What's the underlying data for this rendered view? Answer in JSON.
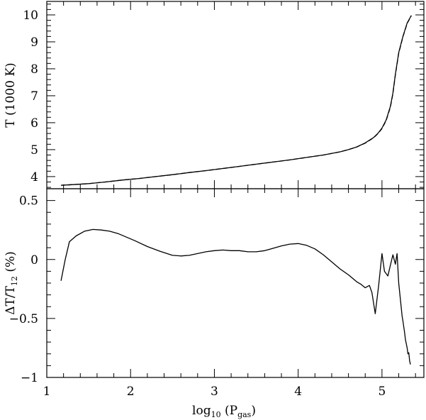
{
  "chart_data": [
    {
      "type": "line",
      "panel": "top",
      "ylabel": "T (1000 K)",
      "xlim": [
        1,
        5.5
      ],
      "ylim": [
        3.55,
        10.5
      ],
      "yticks": [
        "4",
        "5",
        "6",
        "7",
        "8",
        "9",
        "10"
      ],
      "grid": false,
      "series": [
        {
          "style": "solid",
          "x": [
            1.17,
            1.3,
            1.5,
            1.7,
            1.9,
            2.1,
            2.3,
            2.5,
            2.7,
            2.9,
            3.1,
            3.3,
            3.5,
            3.7,
            3.9,
            4.1,
            4.3,
            4.5,
            4.6,
            4.7,
            4.8,
            4.9,
            4.95,
            5.0,
            5.05,
            5.1,
            5.13,
            5.16,
            5.2,
            5.25,
            5.3,
            5.35
          ],
          "y": [
            3.68,
            3.7,
            3.74,
            3.8,
            3.87,
            3.93,
            4.0,
            4.07,
            4.15,
            4.22,
            4.3,
            4.38,
            4.46,
            4.54,
            4.62,
            4.71,
            4.8,
            4.92,
            5.0,
            5.1,
            5.25,
            5.45,
            5.6,
            5.8,
            6.1,
            6.6,
            7.1,
            7.8,
            8.6,
            9.2,
            9.7,
            9.98
          ]
        },
        {
          "style": "dashed",
          "x": [
            1.17,
            1.3,
            1.5,
            1.7,
            1.9,
            2.1,
            2.3,
            2.5,
            2.7,
            2.9,
            3.1,
            3.3,
            3.5,
            3.7,
            3.9,
            4.1,
            4.3,
            4.5,
            4.6,
            4.7,
            4.8,
            4.9,
            4.95,
            5.0,
            5.05,
            5.1,
            5.13,
            5.16,
            5.2,
            5.25,
            5.3,
            5.35
          ],
          "y": [
            3.68,
            3.7,
            3.74,
            3.8,
            3.87,
            3.93,
            4.0,
            4.07,
            4.15,
            4.22,
            4.3,
            4.38,
            4.46,
            4.54,
            4.62,
            4.71,
            4.8,
            4.92,
            5.0,
            5.1,
            5.24,
            5.44,
            5.59,
            5.78,
            6.08,
            6.57,
            7.07,
            7.77,
            8.57,
            9.18,
            9.68,
            9.97
          ]
        }
      ]
    },
    {
      "type": "line",
      "panel": "bottom",
      "xlabel": "log",
      "xlabel_sub": "10",
      "xlabel_rest": " (P",
      "xlabel_sub2": "gas",
      "xlabel_end": ")",
      "ylabel": "ΔT/T",
      "ylabel_sub": "12",
      "ylabel_end": " (%)",
      "xlim": [
        1,
        5.5
      ],
      "ylim": [
        -1,
        0.6
      ],
      "xticks": [
        "1",
        "2",
        "3",
        "4",
        "5"
      ],
      "yticks": [
        "−1",
        "−0.5",
        "0",
        "0.5"
      ],
      "grid": false,
      "series": [
        {
          "style": "solid",
          "x": [
            1.17,
            1.22,
            1.27,
            1.35,
            1.45,
            1.55,
            1.65,
            1.75,
            1.85,
            1.95,
            2.05,
            2.2,
            2.35,
            2.5,
            2.6,
            2.7,
            2.8,
            2.9,
            3.0,
            3.1,
            3.2,
            3.3,
            3.4,
            3.5,
            3.6,
            3.7,
            3.8,
            3.9,
            4.0,
            4.1,
            4.2,
            4.3,
            4.4,
            4.5,
            4.6,
            4.7,
            4.75,
            4.8,
            4.85,
            4.88,
            4.92,
            4.96,
            5.0,
            5.03,
            5.07,
            5.1,
            5.13,
            5.16,
            5.18,
            5.2,
            5.22,
            5.24,
            5.25,
            5.27,
            5.28,
            5.3,
            5.31,
            5.32,
            5.33,
            5.34
          ],
          "y": [
            -0.18,
            0.0,
            0.15,
            0.2,
            0.24,
            0.255,
            0.25,
            0.24,
            0.22,
            0.19,
            0.16,
            0.11,
            0.07,
            0.035,
            0.03,
            0.035,
            0.05,
            0.065,
            0.075,
            0.08,
            0.075,
            0.075,
            0.065,
            0.065,
            0.075,
            0.095,
            0.115,
            0.13,
            0.135,
            0.12,
            0.09,
            0.04,
            -0.02,
            -0.08,
            -0.13,
            -0.19,
            -0.21,
            -0.24,
            -0.22,
            -0.28,
            -0.46,
            -0.22,
            0.05,
            -0.1,
            -0.14,
            -0.05,
            0.04,
            -0.04,
            0.05,
            -0.2,
            -0.34,
            -0.48,
            -0.52,
            -0.62,
            -0.68,
            -0.75,
            -0.8,
            -0.79,
            -0.86,
            -0.89
          ]
        }
      ]
    }
  ]
}
